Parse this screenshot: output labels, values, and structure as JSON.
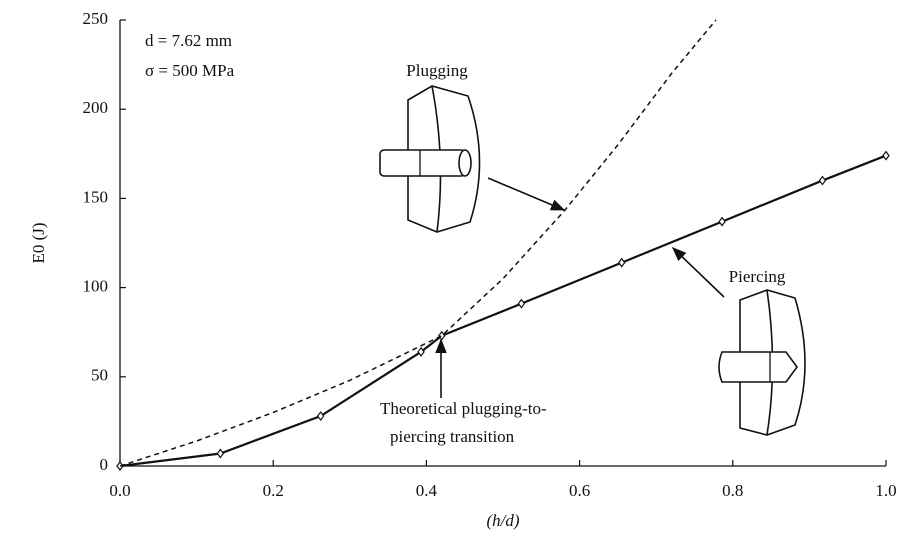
{
  "chart_data": {
    "type": "line",
    "xlabel": "(h/d)",
    "ylabel": "E0 (J)",
    "annotations": [
      "d = 7.62 mm",
      "σ = 500 MPa",
      "Theoretical plugging-to-",
      "piercing transition"
    ],
    "xlim": [
      0,
      1.0
    ],
    "ylim": [
      0,
      250
    ],
    "xticks": [
      {
        "value": 0,
        "label": "0.0"
      },
      0.2,
      0.4,
      0.6,
      0.8,
      {
        "value": 1.0,
        "label": "1.0"
      }
    ],
    "yticks": [
      0,
      50,
      100,
      150,
      200,
      250
    ],
    "grid": false,
    "series": [
      {
        "name": "Piercing",
        "color": "#111111",
        "dash": false,
        "markers": true,
        "x": [
          0,
          0.131,
          0.262,
          0.393,
          0.42,
          0.524,
          0.655,
          0.786,
          0.917,
          1.0
        ],
        "values": [
          0,
          7,
          28,
          64,
          73,
          91,
          114,
          137,
          160,
          174
        ]
      },
      {
        "name": "Plugging",
        "color": "#111111",
        "dash": true,
        "markers": false,
        "x": [
          0,
          0.1,
          0.2,
          0.3,
          0.42,
          0.5,
          0.58,
          0.65,
          0.72,
          0.778
        ],
        "values": [
          0,
          14,
          30,
          48,
          73,
          105,
          143,
          180,
          220,
          250
        ]
      }
    ]
  }
}
